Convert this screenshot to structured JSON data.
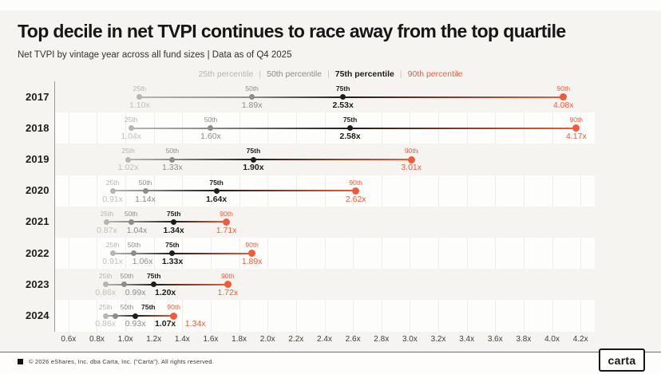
{
  "chart_data": {
    "type": "dot-range",
    "title": "Top decile in net TVPI continues to race away from the top quartile",
    "subtitle": "Net TVPI by vintage year across all fund sizes | Data as of Q4 2025",
    "legend_separator": "|",
    "percentiles": [
      {
        "name": "25th",
        "legend": "25th percentile",
        "color": "#b7b5b1",
        "value_color": "#c1bfbb",
        "bold": false
      },
      {
        "name": "50th",
        "legend": "50th percentile",
        "color": "#8e8c88",
        "value_color": "#8e8c88",
        "bold": false
      },
      {
        "name": "75th",
        "legend": "75th percentile",
        "color": "#1d1d1b",
        "value_color": "#1d1d1b",
        "bold": true
      },
      {
        "name": "90th",
        "legend": "90th percentile",
        "color": "#f15b39",
        "value_color": "#f15b39",
        "bold": false
      }
    ],
    "x_axis": {
      "min": 0.5,
      "max": 4.3,
      "ticks": [
        {
          "value": 0.6,
          "label": "0.6x"
        },
        {
          "value": 0.8,
          "label": "0.8x"
        },
        {
          "value": 1.0,
          "label": "1.0x"
        },
        {
          "value": 1.2,
          "label": "1.2x"
        },
        {
          "value": 1.4,
          "label": "1.4x"
        },
        {
          "value": 1.6,
          "label": "1.6x"
        },
        {
          "value": 1.8,
          "label": "1.8x"
        },
        {
          "value": 2.0,
          "label": "2.0x"
        },
        {
          "value": 2.2,
          "label": "2.2x"
        },
        {
          "value": 2.4,
          "label": "2.4x"
        },
        {
          "value": 2.6,
          "label": "2.6x"
        },
        {
          "value": 2.8,
          "label": "2.8x"
        },
        {
          "value": 3.0,
          "label": "3.0x"
        },
        {
          "value": 3.2,
          "label": "3.2x"
        },
        {
          "value": 3.4,
          "label": "3.4x"
        },
        {
          "value": 3.6,
          "label": "3.6x"
        },
        {
          "value": 3.8,
          "label": "3.8x"
        },
        {
          "value": 4.0,
          "label": "4.0x"
        },
        {
          "value": 4.2,
          "label": "4.2x"
        }
      ]
    },
    "rows": [
      {
        "year": "2017",
        "values": [
          1.1,
          1.89,
          2.53,
          4.08
        ],
        "labels": [
          "1.10x",
          "1.89x",
          "2.53x",
          "4.08x"
        ]
      },
      {
        "year": "2018",
        "values": [
          1.04,
          1.6,
          2.58,
          4.17
        ],
        "labels": [
          "1.04x",
          "1.60x",
          "2.58x",
          "4.17x"
        ]
      },
      {
        "year": "2019",
        "values": [
          1.02,
          1.33,
          1.9,
          3.01
        ],
        "labels": [
          "1.02x",
          "1.33x",
          "1.90x",
          "3.01x"
        ]
      },
      {
        "year": "2020",
        "values": [
          0.91,
          1.14,
          1.64,
          2.62
        ],
        "labels": [
          "0.91x",
          "1.14x",
          "1.64x",
          "2.62x"
        ]
      },
      {
        "year": "2021",
        "values": [
          0.87,
          1.04,
          1.34,
          1.71
        ],
        "labels": [
          "0.87x",
          "1.04x",
          "1.34x",
          "1.71x"
        ]
      },
      {
        "year": "2022",
        "values": [
          0.91,
          1.06,
          1.33,
          1.89
        ],
        "labels": [
          "0.91x",
          "1.06x",
          "1.33x",
          "1.89x"
        ]
      },
      {
        "year": "2023",
        "values": [
          0.86,
          0.99,
          1.2,
          1.72
        ],
        "labels": [
          "0.86x",
          "0.99x",
          "1.20x",
          "1.72x"
        ]
      },
      {
        "year": "2024",
        "values": [
          0.86,
          0.93,
          1.07,
          1.34
        ],
        "labels": [
          "0.86x",
          "0.93x",
          "1.07x",
          "1.34x"
        ]
      }
    ]
  },
  "footer": {
    "copyright": "© 2026 eShares, Inc. dba Carta, Inc. (\"Carta\"). All rights reserved.",
    "logo": "carta"
  }
}
